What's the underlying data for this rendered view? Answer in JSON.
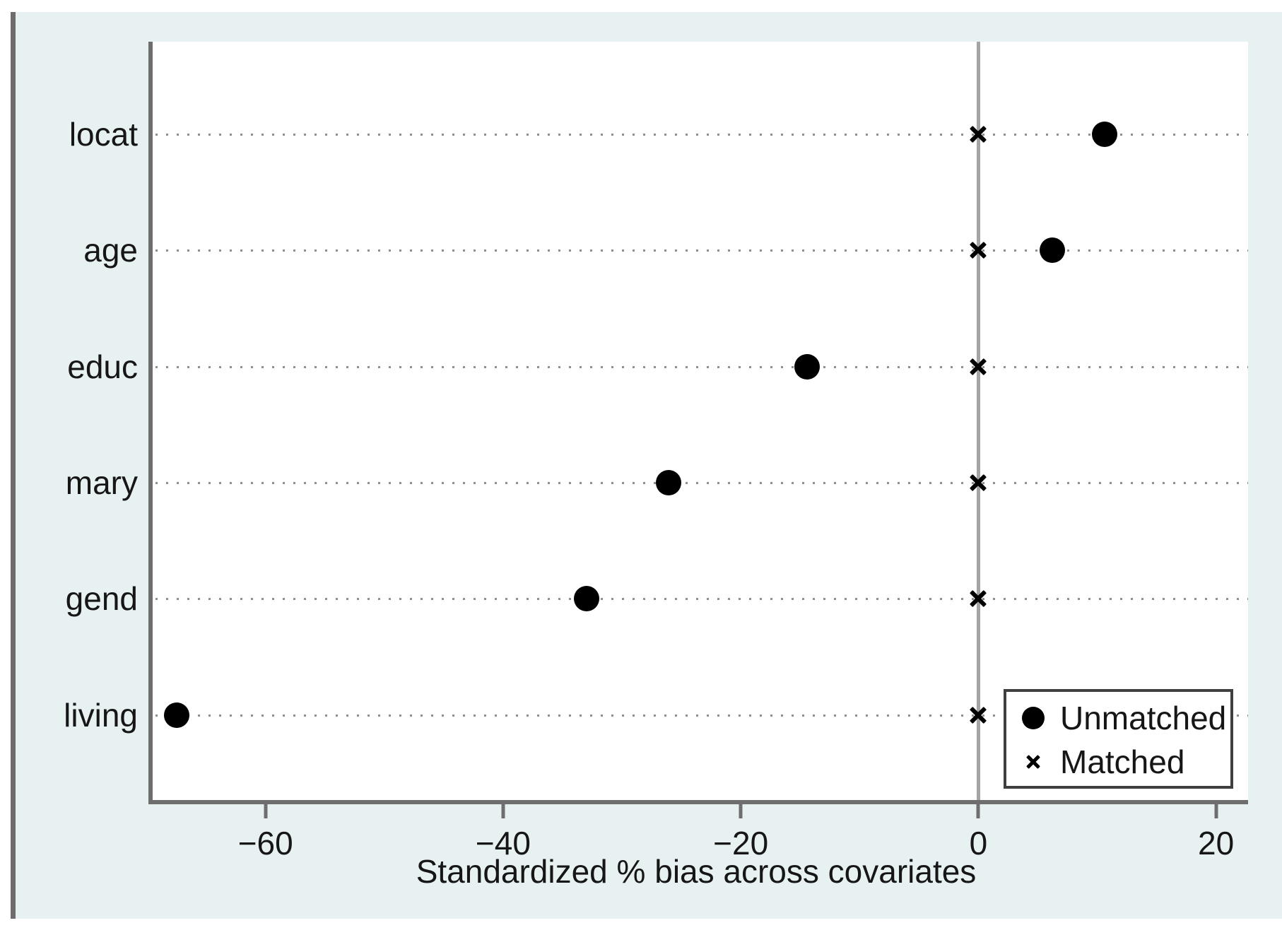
{
  "figure": {
    "xlabel": "Standardized % bias across covariates"
  },
  "chart_data": {
    "type": "scatter",
    "subtype": "horizontal-dot-plot",
    "categories": [
      "locat",
      "age",
      "educ",
      "mary",
      "gend",
      "living"
    ],
    "series": [
      {
        "name": "Unmatched",
        "marker": "circle",
        "values": [
          10.6,
          6.2,
          -14.4,
          -26.1,
          -33.0,
          -67.5
        ]
      },
      {
        "name": "Matched",
        "marker": "x",
        "values": [
          0,
          0,
          0,
          0,
          0,
          0
        ]
      }
    ],
    "title": "",
    "xlabel": "Standardized % bias across covariates",
    "ylabel": "",
    "xlim": [
      -69.5,
      22.7
    ],
    "x_tick_values": [
      -60,
      -40,
      -20,
      0,
      20
    ],
    "x_tick_labels": [
      "−60",
      "−40",
      "−20",
      "0",
      "20"
    ],
    "grid": "dotted horizontal line per category",
    "zero_reference_line": true,
    "legend_position": "inside bottom-right"
  },
  "legend": {
    "items": [
      {
        "marker": "circle",
        "label": "Unmatched"
      },
      {
        "marker": "x",
        "label": "Matched"
      }
    ]
  },
  "colors": {
    "panel_background": "#e8f1f2",
    "plot_background": "#ffffff",
    "axis": "#6e6e6e",
    "zero_line": "#a4a4a4",
    "grid_dots": "#8f8f8f",
    "marker": "#000000",
    "text": "#161616"
  }
}
